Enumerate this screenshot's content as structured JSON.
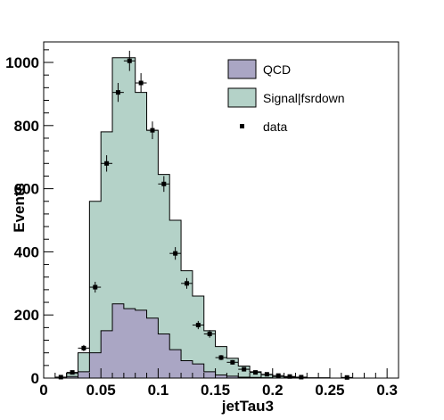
{
  "chart_data": {
    "type": "bar",
    "xlabel": "jetTau3",
    "ylabel": "Events",
    "xlim": [
      0,
      0.31
    ],
    "ylim": [
      0,
      1065
    ],
    "x_ticks": [
      {
        "value": 0,
        "label": "0"
      },
      {
        "value": 0.05,
        "label": "0.05"
      },
      {
        "value": 0.1,
        "label": "0.1"
      },
      {
        "value": 0.15,
        "label": "0.15"
      },
      {
        "value": 0.2,
        "label": "0.2"
      },
      {
        "value": 0.25,
        "label": "0.25"
      },
      {
        "value": 0.3,
        "label": "0.3"
      }
    ],
    "y_ticks": [
      {
        "value": 0,
        "label": "0"
      },
      {
        "value": 200,
        "label": "200"
      },
      {
        "value": 400,
        "label": "400"
      },
      {
        "value": 600,
        "label": "600"
      },
      {
        "value": 800,
        "label": "800"
      },
      {
        "value": 1000,
        "label": "1000"
      }
    ],
    "bin_edges": [
      0,
      0.01,
      0.02,
      0.03,
      0.04,
      0.05,
      0.06,
      0.07,
      0.08,
      0.09,
      0.1,
      0.11,
      0.12,
      0.13,
      0.14,
      0.15,
      0.16,
      0.17,
      0.18,
      0.19,
      0.2,
      0.21,
      0.22,
      0.23,
      0.24,
      0.25,
      0.26,
      0.27,
      0.28,
      0.29,
      0.3,
      0.31
    ],
    "series": [
      {
        "name": "QCD",
        "color": "#aaa6c4",
        "values": [
          0,
          0,
          5,
          20,
          80,
          150,
          235,
          220,
          215,
          190,
          140,
          90,
          55,
          45,
          20,
          10,
          6,
          3,
          2,
          1,
          0,
          0,
          0,
          0,
          0,
          0,
          0,
          0,
          0,
          0,
          0
        ]
      },
      {
        "name": "Signal|fsrdown",
        "color": "#b4d2c8",
        "values": [
          0,
          0,
          10,
          60,
          480,
          630,
          780,
          795,
          690,
          595,
          505,
          410,
          285,
          215,
          130,
          90,
          57,
          35,
          18,
          10,
          5,
          3,
          2,
          1,
          1,
          0,
          0,
          0,
          0,
          0,
          0
        ]
      },
      {
        "name": "data",
        "color": "#000000",
        "x": [
          0.015,
          0.025,
          0.035,
          0.045,
          0.055,
          0.065,
          0.075,
          0.085,
          0.095,
          0.105,
          0.115,
          0.125,
          0.135,
          0.145,
          0.155,
          0.165,
          0.175,
          0.185,
          0.195,
          0.205,
          0.215,
          0.225,
          0.265
        ],
        "y": [
          3,
          18,
          95,
          288,
          680,
          905,
          1005,
          935,
          785,
          615,
          395,
          300,
          168,
          140,
          65,
          50,
          28,
          18,
          12,
          8,
          5,
          3,
          2
        ],
        "err": [
          2,
          4,
          10,
          17,
          26,
          30,
          32,
          31,
          28,
          25,
          20,
          17,
          13,
          12,
          8,
          7,
          5,
          4,
          3.5,
          3,
          2,
          2,
          1.5
        ]
      }
    ],
    "legend": {
      "position": "top-right",
      "entries": [
        {
          "label": "QCD",
          "style": "box",
          "color": "#aaa6c4"
        },
        {
          "label": "Signal|fsrdown",
          "style": "box",
          "color": "#b4d2c8"
        },
        {
          "label": "data",
          "style": "marker",
          "color": "#000000"
        }
      ]
    },
    "grid": false
  }
}
